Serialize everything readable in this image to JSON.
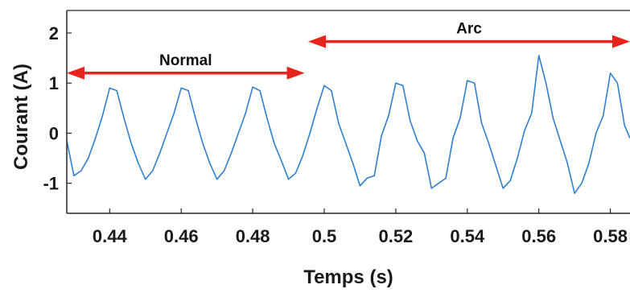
{
  "chart_data": {
    "type": "line",
    "xlabel": "Temps (s)",
    "ylabel": "Courant (A)",
    "xlim": [
      0.428,
      0.5855
    ],
    "ylim": [
      -1.6,
      2.45
    ],
    "xticks": [
      0.44,
      0.46,
      0.48,
      0.5,
      0.52,
      0.54,
      0.56,
      0.58
    ],
    "xtick_labels": [
      "0.44",
      "0.46",
      "0.48",
      "0.5",
      "0.52",
      "0.54",
      "0.56",
      "0.58"
    ],
    "yticks": [
      -1,
      0,
      1,
      2
    ],
    "ytick_labels": [
      "-1",
      "0",
      "1",
      "2"
    ],
    "grid": false,
    "line_color": "#2f7fcf",
    "arrow_color": "#e8231b",
    "annotations": [
      {
        "label": "Normal",
        "x_start": 0.428,
        "x_end": 0.4945,
        "y": 1.2
      },
      {
        "label": "Arc",
        "x_start": 0.4955,
        "x_end": 0.5855,
        "y": 1.83
      }
    ],
    "series": [
      {
        "x": [
          0.428,
          0.43,
          0.432,
          0.434,
          0.436,
          0.438,
          0.44,
          0.442,
          0.444,
          0.446,
          0.448,
          0.45,
          0.452,
          0.454,
          0.456,
          0.458,
          0.46,
          0.462,
          0.464,
          0.466,
          0.468,
          0.47,
          0.472,
          0.474,
          0.476,
          0.478,
          0.48,
          0.482,
          0.484,
          0.486,
          0.488,
          0.49,
          0.492,
          0.494,
          0.496,
          0.498,
          0.5,
          0.502,
          0.504,
          0.506,
          0.508,
          0.51,
          0.512,
          0.514,
          0.516,
          0.518,
          0.52,
          0.522,
          0.524,
          0.526,
          0.528,
          0.53,
          0.532,
          0.534,
          0.536,
          0.538,
          0.54,
          0.542,
          0.544,
          0.546,
          0.548,
          0.55,
          0.552,
          0.554,
          0.556,
          0.558,
          0.56,
          0.562,
          0.564,
          0.566,
          0.568,
          0.57,
          0.572,
          0.574,
          0.576,
          0.578,
          0.58,
          0.582,
          0.584,
          0.5855
        ],
        "y": [
          -0.15,
          -0.85,
          -0.75,
          -0.5,
          -0.1,
          0.35,
          0.9,
          0.85,
          0.3,
          -0.2,
          -0.6,
          -0.92,
          -0.75,
          -0.4,
          0.0,
          0.4,
          0.9,
          0.85,
          0.3,
          -0.2,
          -0.6,
          -0.92,
          -0.75,
          -0.4,
          0.0,
          0.4,
          0.92,
          0.85,
          0.3,
          -0.2,
          -0.55,
          -0.92,
          -0.8,
          -0.45,
          0.0,
          0.5,
          0.95,
          0.85,
          0.2,
          -0.2,
          -0.6,
          -1.05,
          -0.9,
          -0.85,
          -0.05,
          0.35,
          1.0,
          0.95,
          0.25,
          -0.15,
          -0.4,
          -1.1,
          -1.0,
          -0.9,
          -0.1,
          0.3,
          1.05,
          1.0,
          0.2,
          -0.2,
          -0.65,
          -1.1,
          -0.95,
          -0.5,
          0.05,
          0.4,
          1.55,
          1.0,
          0.3,
          -0.15,
          -0.6,
          -1.2,
          -1.0,
          -0.6,
          0.0,
          0.35,
          1.2,
          1.0,
          0.15,
          -0.1
        ]
      }
    ]
  }
}
